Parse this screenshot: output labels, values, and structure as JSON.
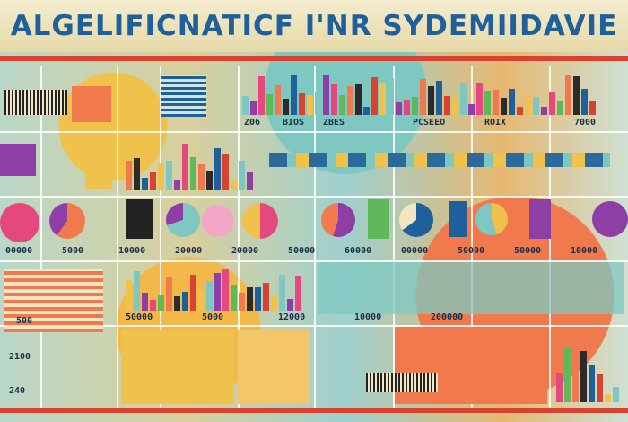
{
  "title": "ALGELIFICNATICF I'NR SYDEMIIDAVIE",
  "palette": [
    "#1f5f9a",
    "#d8432f",
    "#f0c14b",
    "#7fc8c2",
    "#8e3fa5",
    "#e5487f",
    "#5fb85a",
    "#f07a4e",
    "#2b2b2b"
  ],
  "row_labels": {
    "top_axis": [
      "Z06",
      "BIOS",
      "ZBES",
      "PCSEEO",
      "ROIX",
      "7000"
    ],
    "mid_axis": [
      "00000",
      "5000",
      "10000",
      "20000",
      "20000",
      "50000",
      "60000",
      "00000",
      "50000",
      "50000",
      "10000"
    ],
    "lower_axis": [
      "50000",
      "5000",
      "12000",
      "10000",
      "200000"
    ],
    "left_side": [
      "500",
      "2100",
      "240"
    ]
  },
  "icons": {
    "pie": "pie-icon",
    "bar": "bar-chart-icon"
  }
}
